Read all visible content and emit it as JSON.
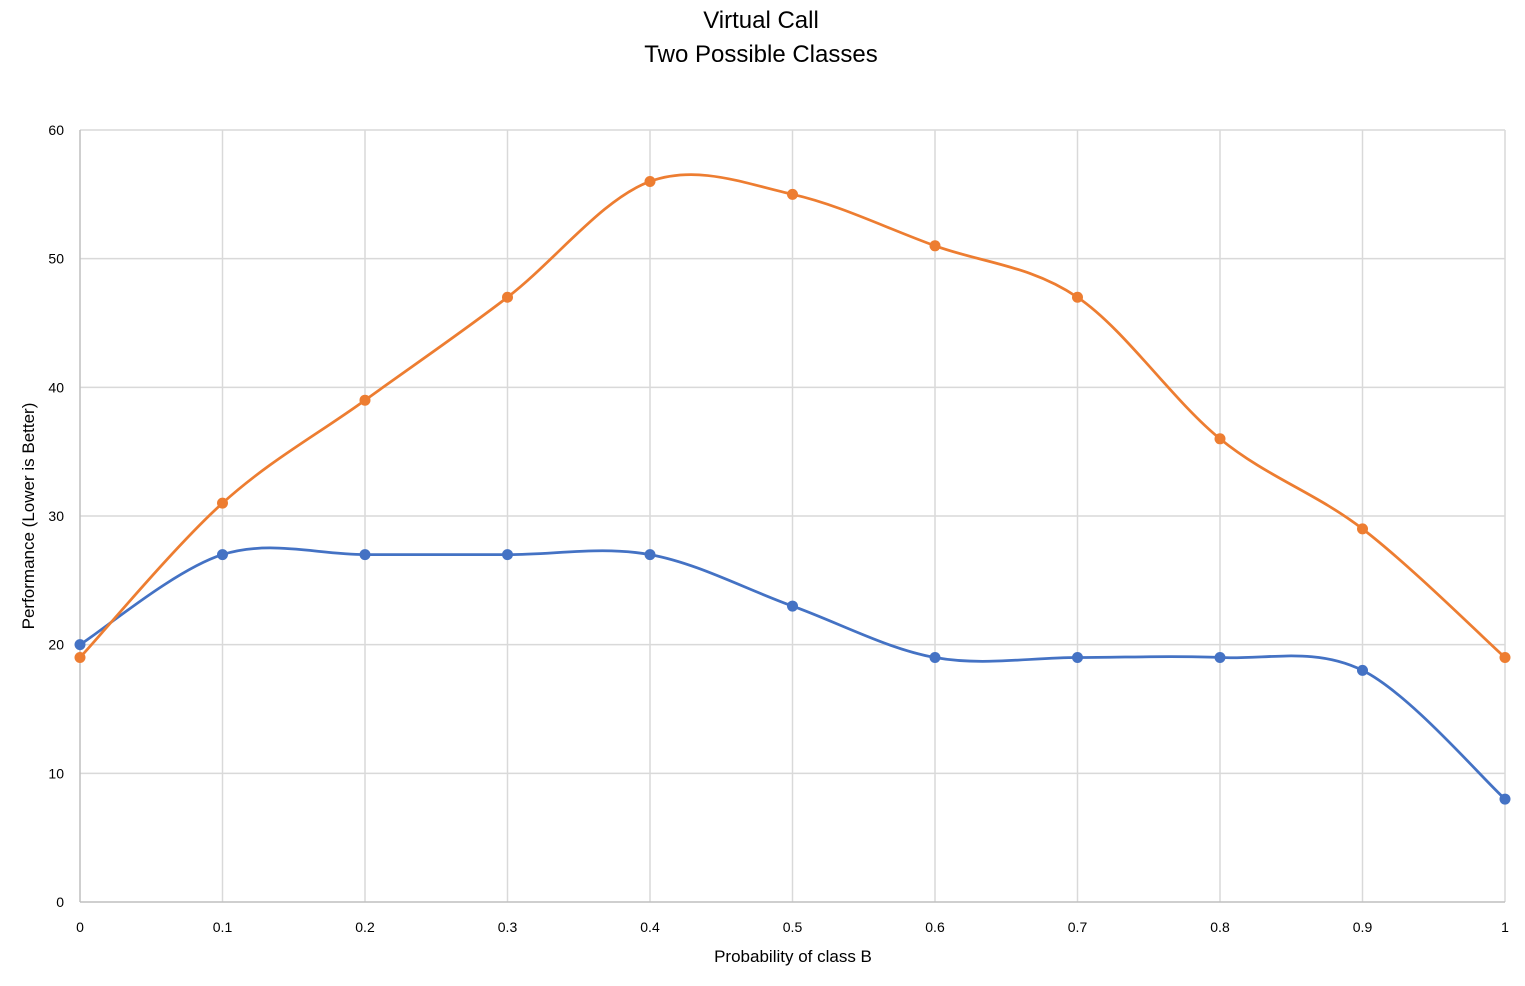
{
  "chart_data": {
    "type": "line",
    "title": "Virtual Call",
    "subtitle": "Two Possible Classes",
    "xlabel": "Probability of class B",
    "ylabel": "Performance (Lower is Better)",
    "x": [
      0,
      0.1,
      0.2,
      0.3,
      0.4,
      0.5,
      0.6,
      0.7,
      0.8,
      0.9,
      1
    ],
    "x_tick_labels": [
      "0",
      "0.1",
      "0.2",
      "0.3",
      "0.4",
      "0.5",
      "0.6",
      "0.7",
      "0.8",
      "0.9",
      "1"
    ],
    "y_tick_labels": [
      "0",
      "10",
      "20",
      "30",
      "40",
      "50",
      "60"
    ],
    "xlim": [
      0,
      1
    ],
    "ylim": [
      0,
      60
    ],
    "grid": true,
    "legend": "none",
    "smooth": true,
    "series": [
      {
        "color": "#4472C4",
        "values": [
          20,
          27,
          27,
          27,
          27,
          23,
          19,
          19,
          19,
          18,
          8
        ]
      },
      {
        "color": "#ED7D31",
        "values": [
          19,
          31,
          39,
          47,
          56,
          55,
          51,
          47,
          36,
          29,
          19
        ]
      }
    ]
  }
}
